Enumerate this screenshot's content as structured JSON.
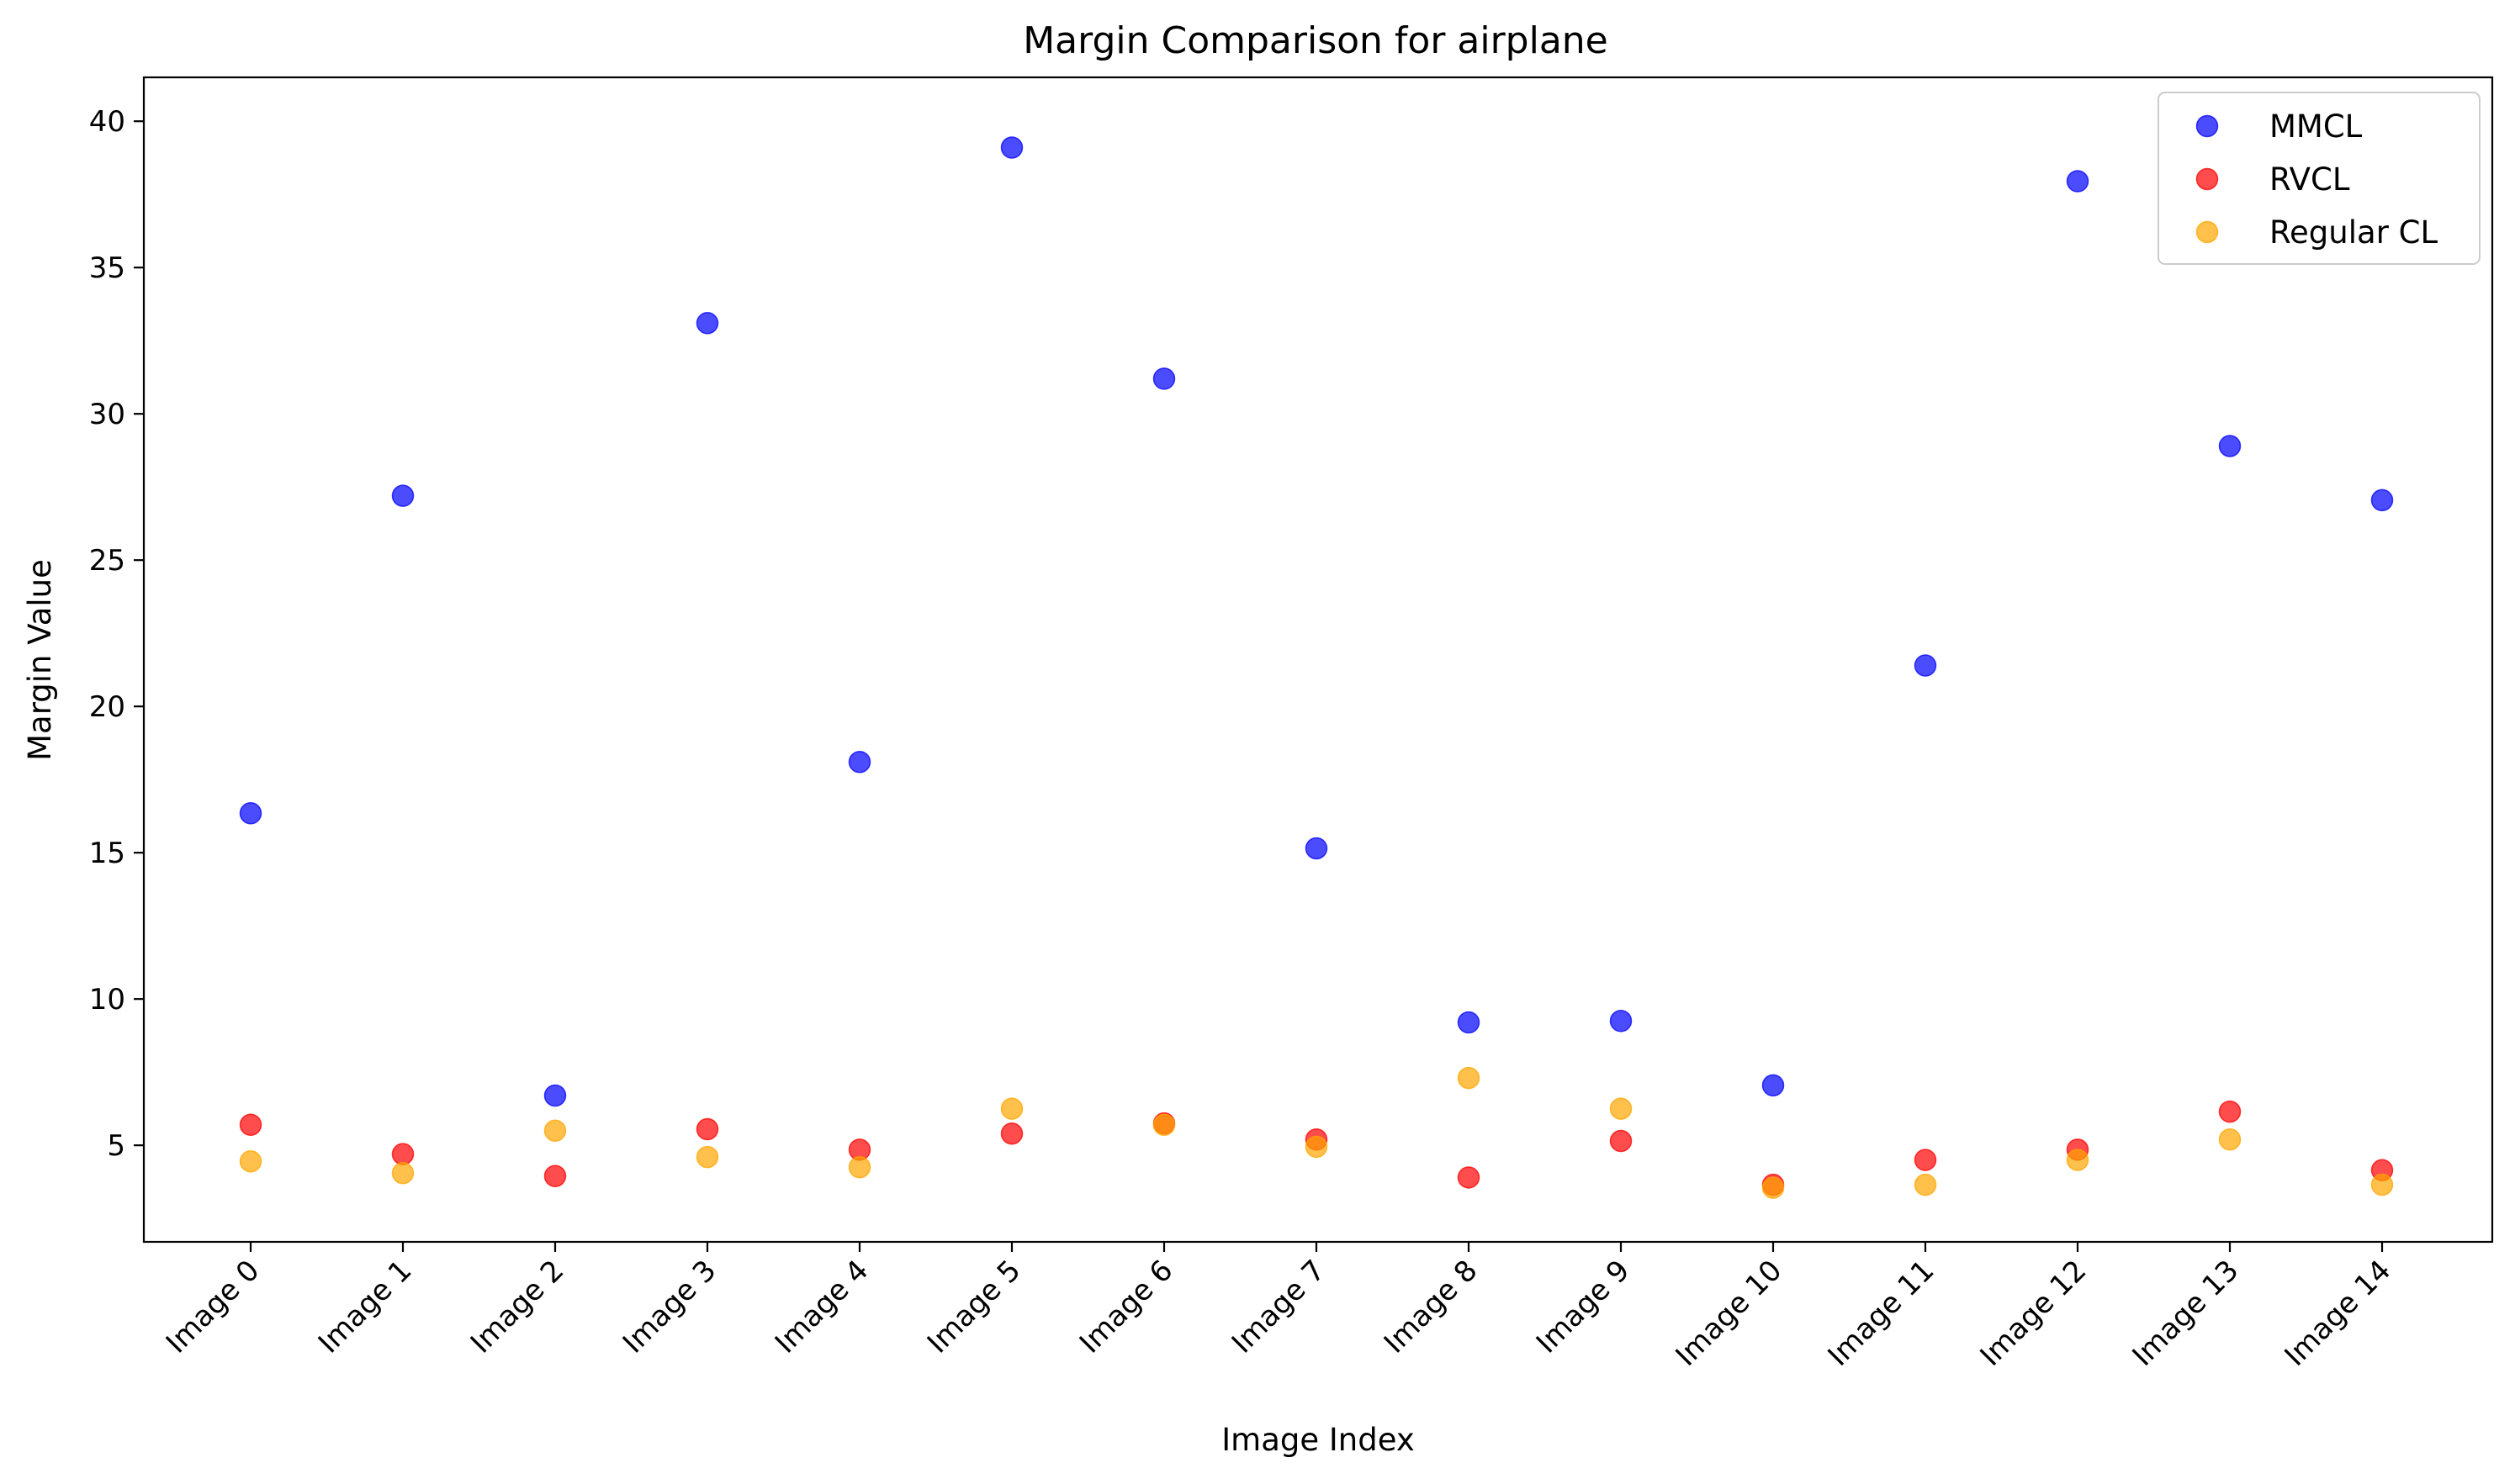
{
  "chart_data": {
    "type": "scatter",
    "title": "Margin Comparison for airplane",
    "xlabel": "Image Index",
    "ylabel": "Margin Value",
    "categories": [
      "Image 0",
      "Image 1",
      "Image 2",
      "Image 3",
      "Image 4",
      "Image 5",
      "Image 6",
      "Image 7",
      "Image 8",
      "Image 9",
      "Image 10",
      "Image 11",
      "Image 12",
      "Image 13",
      "Image 14"
    ],
    "ylim": [
      1.7,
      41.5
    ],
    "yticks": [
      5,
      10,
      15,
      20,
      25,
      30,
      35,
      40
    ],
    "grid": false,
    "legend_position": "top-right",
    "series": [
      {
        "name": "MMCL",
        "color": "#0000ff",
        "values": [
          16.35,
          27.2,
          6.7,
          33.1,
          18.1,
          39.1,
          31.2,
          15.15,
          9.2,
          9.25,
          7.05,
          21.4,
          37.95,
          28.9,
          27.05
        ]
      },
      {
        "name": "RVCL",
        "color": "#ff0000",
        "values": [
          5.7,
          4.7,
          3.95,
          5.55,
          4.85,
          5.4,
          5.75,
          5.2,
          3.9,
          5.15,
          3.65,
          4.5,
          4.85,
          6.15,
          4.15
        ]
      },
      {
        "name": "Regular CL",
        "color": "#ffa500",
        "values": [
          4.45,
          4.05,
          5.5,
          4.6,
          4.25,
          6.25,
          5.7,
          4.95,
          7.3,
          6.25,
          3.55,
          3.65,
          4.5,
          5.2,
          3.65
        ]
      }
    ]
  }
}
